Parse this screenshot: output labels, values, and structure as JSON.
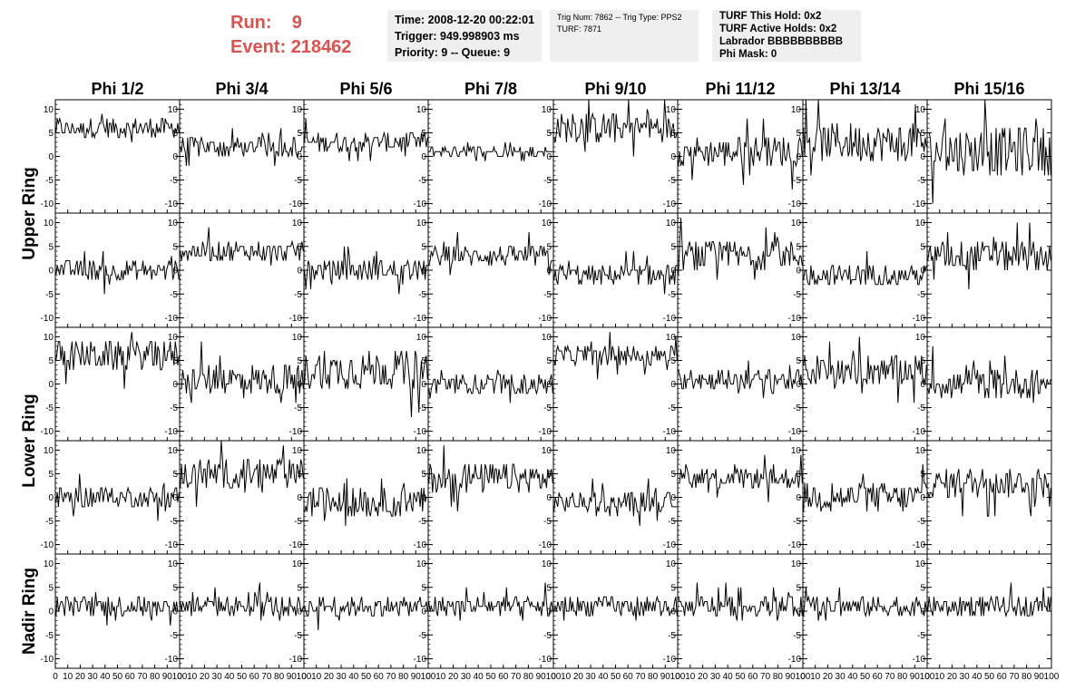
{
  "header": {
    "run_label": "Run:",
    "run_value": "9",
    "event_label": "Event:",
    "event_value": "218462"
  },
  "info_panels": [
    {
      "size": "normal",
      "lines": [
        "Time: 2008-12-20 00:22:01",
        "Trigger: 949.998903 ms",
        "Priority: 9 -- Queue: 9"
      ]
    },
    {
      "size": "small",
      "lines": [
        "Trig Num: 7862 -- Trig Type: PPS2",
        "",
        "TURF: 7871"
      ]
    },
    {
      "size": "normal",
      "lines": [
        "TURF This Hold: 0x2",
        "TURF Active Holds: 0x2",
        "Labrador BBBBBBBBBB",
        "Phi Mask: 0"
      ]
    }
  ],
  "chart_data": {
    "type": "line",
    "description_free": true,
    "columns": [
      "Phi 1/2",
      "Phi 3/4",
      "Phi 5/6",
      "Phi 7/8",
      "Phi 9/10",
      "Phi 11/12",
      "Phi 13/14",
      "Phi 15/16"
    ],
    "ring_labels": [
      "Upper Ring",
      "Lower Ring",
      "Nadir Ring"
    ],
    "rows_per_ring": [
      2,
      2,
      1
    ],
    "xlim": [
      0,
      100
    ],
    "ylim": [
      -12,
      12
    ],
    "x_ticks": [
      0,
      10,
      20,
      30,
      40,
      50,
      60,
      70,
      80,
      90,
      100
    ],
    "x_tick_labels": [
      "0",
      "10",
      "20",
      "30",
      "40",
      "50",
      "60",
      "70",
      "80",
      "90",
      "100"
    ],
    "y_ticks": [
      -10,
      -5,
      0,
      5,
      10
    ],
    "y_tick_labels": [
      "-10",
      "-5",
      "0",
      "5",
      "10"
    ],
    "samples": 100,
    "baselines": [
      [
        6,
        2,
        3,
        1,
        6,
        1,
        3,
        1
      ],
      [
        0,
        4,
        0,
        3,
        -1,
        3,
        -1,
        3
      ],
      [
        6,
        1,
        3,
        0,
        6,
        1,
        3,
        0
      ],
      [
        0,
        5,
        -1,
        4,
        -1,
        4,
        0,
        3
      ],
      [
        1,
        1,
        1,
        1,
        1,
        1,
        1,
        1
      ]
    ],
    "amplitudes": [
      [
        2,
        2,
        2,
        1,
        3,
        3,
        4,
        5
      ],
      [
        2,
        2,
        2,
        2,
        2,
        3,
        2,
        3
      ],
      [
        3,
        3,
        4,
        2,
        2,
        2,
        3,
        3
      ],
      [
        2,
        3,
        3,
        3,
        2,
        2,
        3,
        3
      ],
      [
        2,
        2,
        2,
        2,
        2,
        2,
        2,
        2
      ]
    ]
  }
}
